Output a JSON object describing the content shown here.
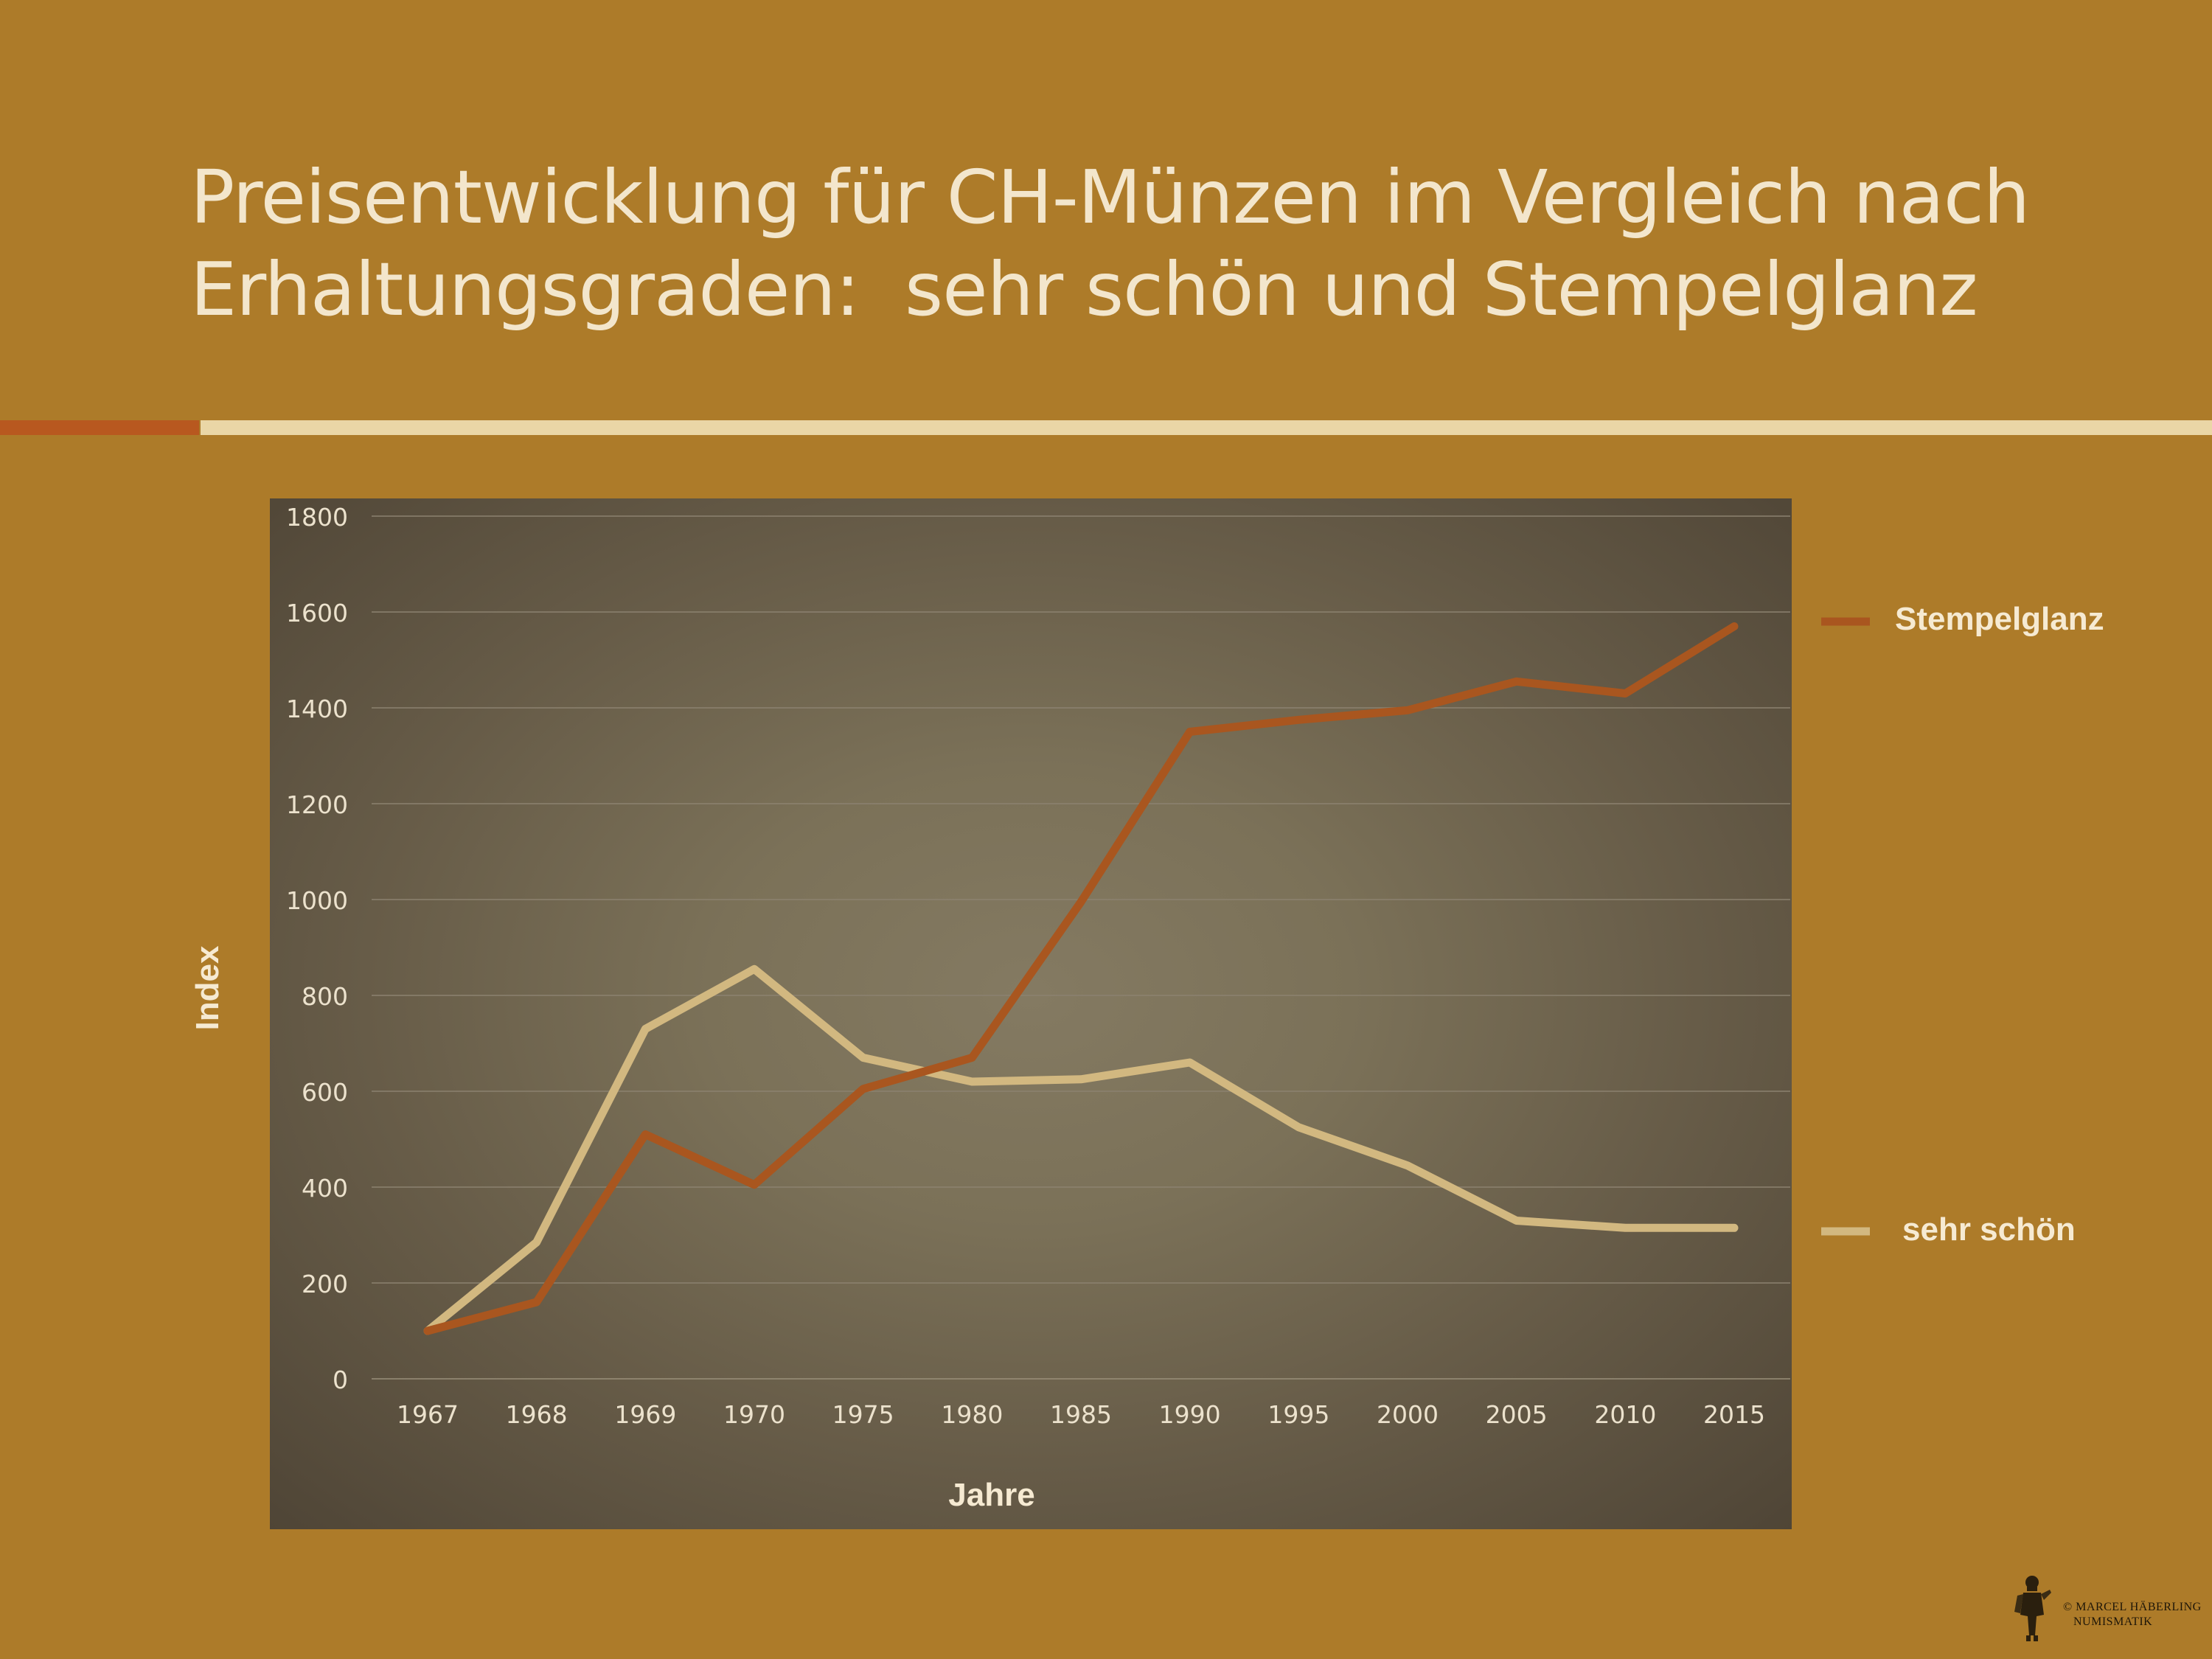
{
  "slide": {
    "title_lines": [
      "Preisentwicklung für CH-Münzen im Vergleich nach",
      "Erhaltungsgraden:  sehr schön und Stempelglanz"
    ]
  },
  "chart_data": {
    "type": "line",
    "title": "",
    "xlabel": "Jahre",
    "ylabel": "Index",
    "ylim": [
      0,
      1800
    ],
    "yticks": [
      0,
      200,
      400,
      600,
      800,
      1000,
      1200,
      1400,
      1600,
      1800
    ],
    "categories": [
      "1967",
      "1968",
      "1969",
      "1970",
      "1975",
      "1980",
      "1985",
      "1990",
      "1995",
      "2000",
      "2005",
      "2010",
      "2015"
    ],
    "grid": true,
    "legend": "right",
    "series": [
      {
        "name": "Stempelglanz",
        "color": "#a9561f",
        "values": [
          100,
          160,
          510,
          405,
          605,
          670,
          995,
          1350,
          1375,
          1395,
          1455,
          1430,
          1570
        ]
      },
      {
        "name": "sehr schön",
        "color": "#d2b880",
        "values": [
          100,
          285,
          730,
          855,
          670,
          620,
          625,
          660,
          525,
          445,
          330,
          315,
          315
        ]
      }
    ]
  },
  "watermark": {
    "copyright": "©",
    "line1": "MARCEL HÄBERLING",
    "line2": "NUMISMATIK"
  }
}
